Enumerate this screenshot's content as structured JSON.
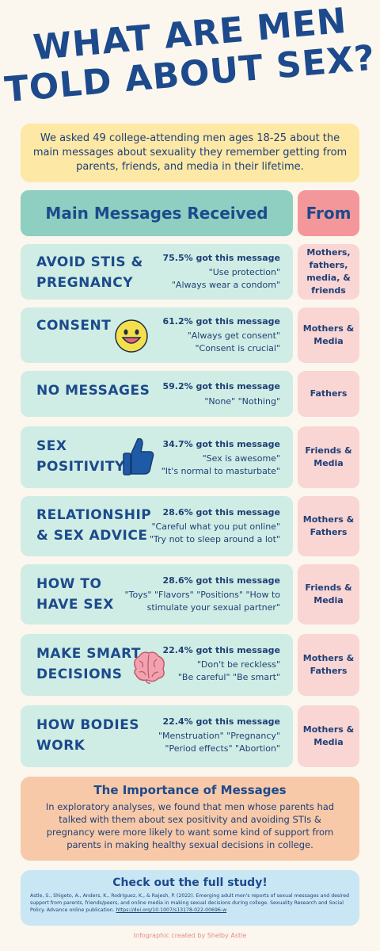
{
  "title": {
    "line1": "WHAT ARE MEN",
    "line2": "TOLD ABOUT SEX?"
  },
  "intro": "We asked 49 college-attending men ages 18-25 about the main messages about sexuality they remember getting from parents, friends, and media in their lifetime.",
  "headers": {
    "main": "Main Messages Received",
    "from": "From"
  },
  "rows": [
    {
      "category_1": "Avoid STIs &",
      "category_2": "Pregnancy",
      "pct": "75.5% got this message",
      "quote_1": "\"Use protection\"",
      "quote_2": "\"Always wear a condom\"",
      "from": "Mothers, fathers, media, & friends"
    },
    {
      "category_1": "Consent",
      "category_2": "",
      "pct": "61.2% got this message",
      "quote_1": "\"Always get consent\"",
      "quote_2": "\"Consent is crucial\"",
      "from": "Mothers & Media",
      "icon": "smiley-face-icon"
    },
    {
      "category_1": "No Messages",
      "category_2": "",
      "pct": "59.2% got this message",
      "quote_1": "\"None\" \"Nothing\"",
      "quote_2": "",
      "from": "Fathers"
    },
    {
      "category_1": "Sex",
      "category_2": "Positivity",
      "pct": "34.7% got this message",
      "quote_1": "\"Sex is awesome\"",
      "quote_2": "\"It's normal to masturbate\"",
      "from": "Friends & Media",
      "icon": "thumbs-up-icon"
    },
    {
      "category_1": "Relationship",
      "category_2": "& Sex Advice",
      "pct": "28.6% got this message",
      "quote_1": "\"Careful what you put online\"",
      "quote_2": "\"Try not to sleep around a lot\"",
      "from": "Mothers & Fathers"
    },
    {
      "category_1": "How to",
      "category_2": "Have Sex",
      "pct": "28.6% got this message",
      "quote_1": "\"Toys\" \"Flavors\" \"Positions\" \"How to",
      "quote_2": "stimulate your sexual partner\"",
      "from": "Friends & Media"
    },
    {
      "category_1": "Make Smart",
      "category_2": "Decisions",
      "pct": "22.4% got this message",
      "quote_1": "\"Don't be reckless\"",
      "quote_2": "\"Be careful\" \"Be smart\"",
      "from": "Mothers & Fathers",
      "icon": "brain-icon"
    },
    {
      "category_1": "How Bodies",
      "category_2": "Work",
      "pct": "22.4% got this message",
      "quote_1": "\"Menstruation\" \"Pregnancy\"",
      "quote_2": "\"Period effects\" \"Abortion\"",
      "from": "Mothers & Media"
    }
  ],
  "importance": {
    "heading": "The Importance of Messages",
    "body": "In exploratory analyses, we found that men whose parents had talked with them about sex positivity and avoiding STIs & pregnancy were more likely to want some kind of support from parents in making healthy sexual decisions in college."
  },
  "study": {
    "heading": "Check out the full study!",
    "citation": "Astle, S., Shigeto, A., Anders, K., Rodriguez, K., & Rajesh, P. (2022). Emerging adult men's reports of sexual messages and desired support from parents, friends/peers, and online media in making sexual decisions during college. Sexuality Research and Social Policy. Advance online publication.",
    "doi": "https://doi.org/10.1007/s13178-022-00696-w"
  },
  "credit": "Infographic created by Shelby Astle",
  "colors": {
    "navy": "#1C4A8C",
    "mint": "#CFEDE4",
    "teal_header": "#8ECFC1",
    "pink": "#F9D5D3",
    "coral_header": "#F4979A",
    "yellow": "#FDE8A6",
    "peach": "#F8C9A8",
    "light_blue": "#C9E6F4"
  }
}
